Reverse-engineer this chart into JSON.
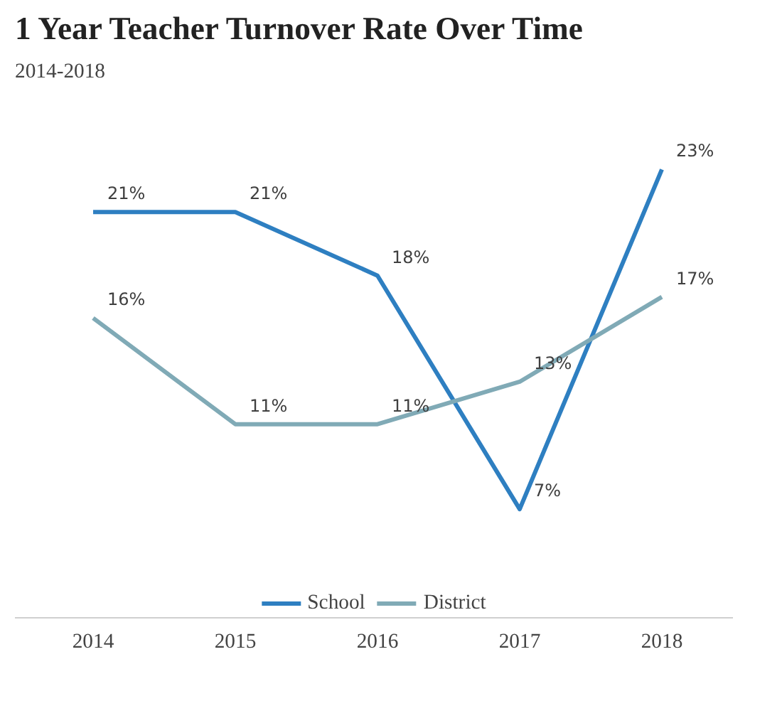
{
  "chart_data": {
    "type": "line",
    "title": "1 Year Teacher Turnover Rate Over Time",
    "subtitle": "2014-2018",
    "categories": [
      "2014",
      "2015",
      "2016",
      "2017",
      "2018"
    ],
    "series": [
      {
        "name": "School",
        "color": "#2e7fc1",
        "values": [
          21,
          21,
          18,
          7,
          23
        ],
        "value_labels": [
          "21%",
          "21%",
          "18%",
          "7%",
          "23%"
        ]
      },
      {
        "name": "District",
        "color": "#80aab6",
        "values": [
          16,
          11,
          11,
          13,
          17
        ],
        "value_labels": [
          "16%",
          "11%",
          "11%",
          "13%",
          "17%"
        ]
      }
    ],
    "legend": "bottom",
    "grid": false,
    "marker": "none",
    "line_style": "solid",
    "tick_labels": "x"
  }
}
